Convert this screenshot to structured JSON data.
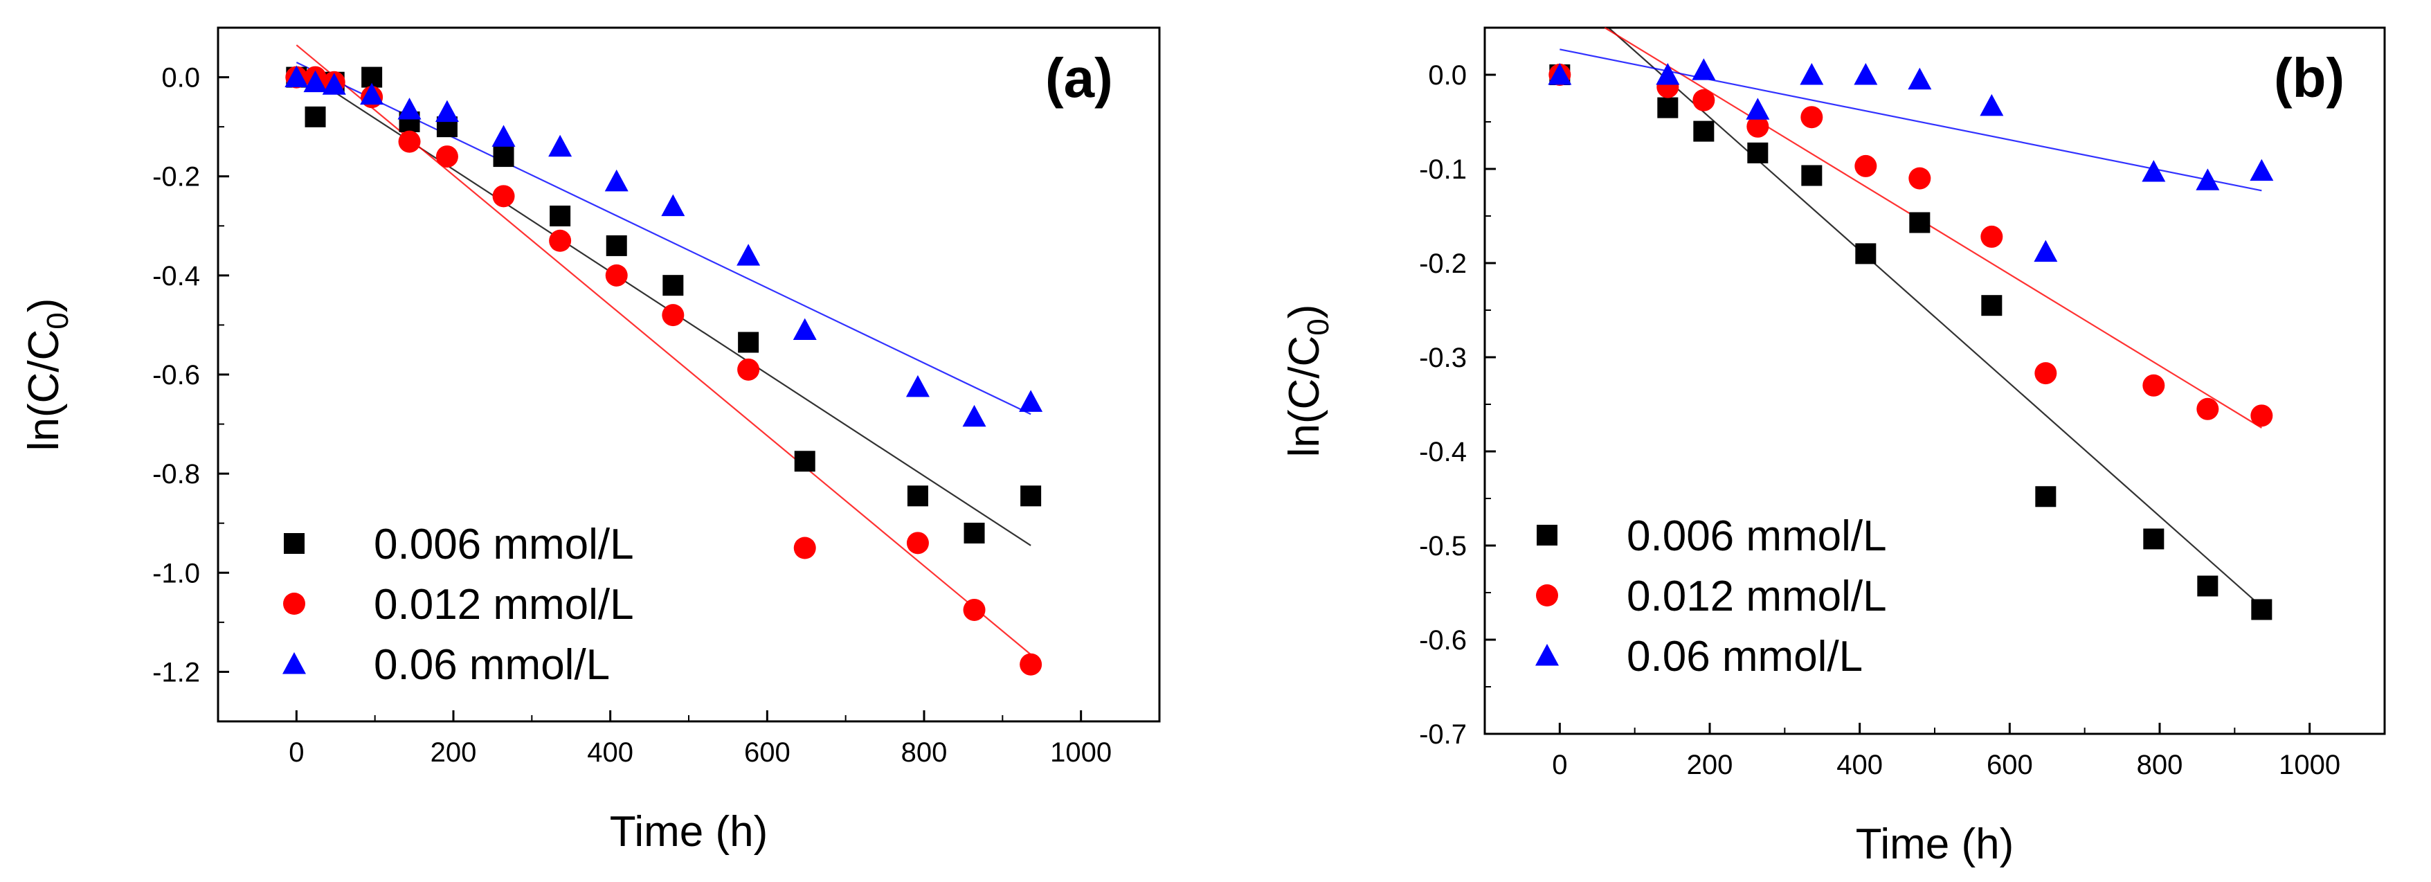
{
  "chart_data": [
    {
      "panel": "(a)",
      "type": "scatter",
      "xlabel": "Time (h)",
      "ylabel": "ln(C/C0)",
      "xlim": [
        -100,
        1100
      ],
      "ylim": [
        -1.3,
        0.1
      ],
      "xticks": [
        0,
        200,
        400,
        600,
        800,
        1000
      ],
      "yticks": [
        0.0,
        -0.2,
        -0.4,
        -0.6,
        -0.8,
        -1.0,
        -1.2
      ],
      "legend_position": "bottom-left",
      "series": [
        {
          "name": "0.006 mmol/L",
          "color": "#000000",
          "marker": "square",
          "x": [
            0,
            24,
            48,
            96,
            144,
            192,
            264,
            336,
            408,
            480,
            576,
            648,
            792,
            864,
            936
          ],
          "y": [
            0.0,
            -0.08,
            -0.01,
            0.0,
            -0.09,
            -0.1,
            -0.16,
            -0.28,
            -0.34,
            -0.42,
            -0.535,
            -0.775,
            -0.845,
            -0.92,
            -0.845
          ],
          "fit": [
            [
              0,
              0.02
            ],
            [
              936,
              -0.945
            ]
          ]
        },
        {
          "name": "0.012 mmol/L",
          "color": "#ff0000",
          "marker": "circle",
          "x": [
            0,
            24,
            48,
            96,
            144,
            192,
            264,
            336,
            408,
            480,
            576,
            648,
            792,
            864,
            936
          ],
          "y": [
            0.0,
            0.0,
            -0.01,
            -0.04,
            -0.13,
            -0.16,
            -0.24,
            -0.33,
            -0.4,
            -0.48,
            -0.59,
            -0.95,
            -0.94,
            -1.075,
            -1.185
          ],
          "fit": [
            [
              0,
              0.065
            ],
            [
              936,
              -1.165
            ]
          ]
        },
        {
          "name": "0.06 mmol/L",
          "color": "#0000ff",
          "marker": "triangle",
          "x": [
            0,
            24,
            48,
            96,
            144,
            192,
            264,
            336,
            408,
            480,
            576,
            648,
            792,
            864,
            936
          ],
          "y": [
            0.0,
            -0.01,
            -0.015,
            -0.035,
            -0.065,
            -0.07,
            -0.12,
            -0.14,
            -0.21,
            -0.26,
            -0.36,
            -0.51,
            -0.625,
            -0.685,
            -0.655
          ],
          "fit": [
            [
              0,
              0.03
            ],
            [
              936,
              -0.68
            ]
          ]
        }
      ]
    },
    {
      "panel": "(b)",
      "type": "scatter",
      "xlabel": "Time (h)",
      "ylabel": "ln(C/C0)",
      "xlim": [
        -100,
        1100
      ],
      "ylim": [
        -0.7,
        0.05
      ],
      "xticks": [
        0,
        200,
        400,
        600,
        800,
        1000
      ],
      "yticks": [
        0.0,
        -0.1,
        -0.2,
        -0.3,
        -0.4,
        -0.5,
        -0.6,
        -0.7
      ],
      "legend_position": "bottom-left",
      "series": [
        {
          "name": "0.006 mmol/L",
          "color": "#000000",
          "marker": "square",
          "x": [
            0,
            144,
            192,
            264,
            336,
            408,
            480,
            576,
            648,
            792,
            864,
            936
          ],
          "y": [
            0.0,
            -0.035,
            -0.06,
            -0.083,
            -0.107,
            -0.19,
            -0.157,
            -0.245,
            -0.448,
            -0.493,
            -0.543,
            -0.568
          ],
          "fit": [
            [
              65,
              0.05
            ],
            [
              936,
              -0.565
            ]
          ]
        },
        {
          "name": "0.012 mmol/L",
          "color": "#ff0000",
          "marker": "circle",
          "x": [
            0,
            144,
            192,
            264,
            336,
            408,
            480,
            576,
            648,
            792,
            864,
            936
          ],
          "y": [
            0.0,
            -0.013,
            -0.027,
            -0.055,
            -0.045,
            -0.097,
            -0.11,
            -0.172,
            -0.317,
            -0.33,
            -0.355,
            -0.362
          ],
          "fit": [
            [
              60,
              0.05
            ],
            [
              936,
              -0.375
            ]
          ]
        },
        {
          "name": "0.06 mmol/L",
          "color": "#0000ff",
          "marker": "triangle",
          "x": [
            0,
            144,
            192,
            264,
            336,
            408,
            480,
            576,
            648,
            792,
            864,
            936
          ],
          "y": [
            0.0,
            0.0,
            0.005,
            -0.037,
            0.0,
            0.0,
            -0.005,
            -0.033,
            -0.188,
            -0.103,
            -0.112,
            -0.102
          ],
          "fit": [
            [
              0,
              0.027
            ],
            [
              936,
              -0.123
            ]
          ]
        }
      ]
    }
  ]
}
